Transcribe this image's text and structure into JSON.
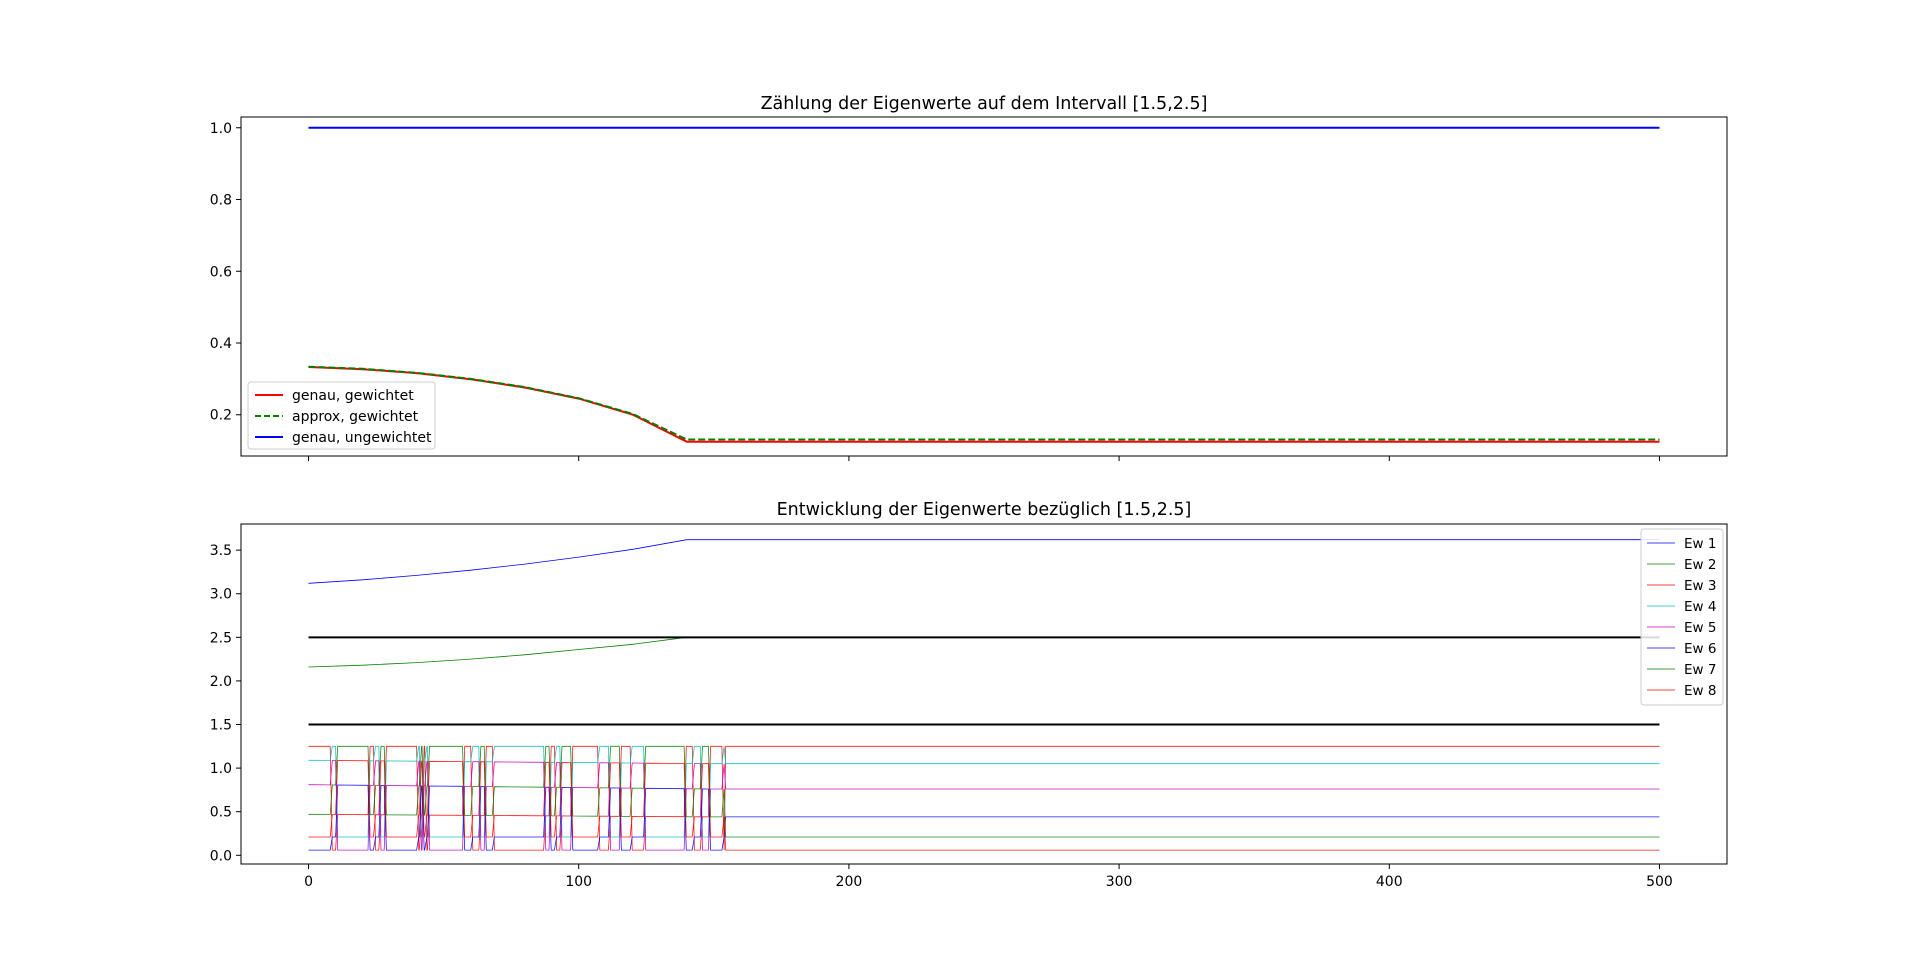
{
  "chart_data": [
    {
      "type": "line",
      "title": "Zählung der Eigenwerte auf dem Intervall [1.5,2.5]",
      "xlim": [
        -25,
        525
      ],
      "ylim": [
        0.085,
        1.03
      ],
      "xticks": [
        0,
        100,
        200,
        300,
        400,
        500
      ],
      "xtick_labels_visible": false,
      "yticks": [
        0.2,
        0.4,
        0.6,
        0.8,
        1.0
      ],
      "ytick_labels": [
        "0.2",
        "0.4",
        "0.6",
        "0.8",
        "1.0"
      ],
      "grid": false,
      "legend_position": "lower-left",
      "x": [
        0,
        20,
        40,
        60,
        80,
        100,
        120,
        140,
        200,
        300,
        400,
        500
      ],
      "series": [
        {
          "name": "genau, gewichtet",
          "color": "#ff0000",
          "style": "solid",
          "values": [
            0.333,
            0.327,
            0.316,
            0.299,
            0.276,
            0.245,
            0.2,
            0.125,
            0.125,
            0.125,
            0.125,
            0.125
          ]
        },
        {
          "name": "approx, gewichtet",
          "color": "#008000",
          "style": "dashed",
          "values": [
            0.334,
            0.328,
            0.317,
            0.3,
            0.277,
            0.246,
            0.202,
            0.131,
            0.131,
            0.131,
            0.131,
            0.131
          ]
        },
        {
          "name": "genau, ungewichtet",
          "color": "#0000ff",
          "style": "solid",
          "values": [
            1.0,
            1.0,
            1.0,
            1.0,
            1.0,
            1.0,
            1.0,
            1.0,
            1.0,
            1.0,
            1.0,
            1.0
          ]
        }
      ]
    },
    {
      "type": "line",
      "title": "Entwicklung der Eigenwerte bezüglich [1.5,2.5]",
      "xlim": [
        -25,
        525
      ],
      "ylim": [
        -0.1,
        3.8
      ],
      "xticks": [
        0,
        100,
        200,
        300,
        400,
        500
      ],
      "xtick_labels": [
        "0",
        "100",
        "200",
        "300",
        "400",
        "500"
      ],
      "yticks": [
        0.0,
        0.5,
        1.0,
        1.5,
        2.0,
        2.5,
        3.0,
        3.5
      ],
      "ytick_labels": [
        "0.0",
        "0.5",
        "1.0",
        "1.5",
        "2.0",
        "2.5",
        "3.0",
        "3.5"
      ],
      "grid": false,
      "legend_position": "upper-right",
      "interval_bounds": [
        1.5,
        2.5
      ],
      "interval_color": "#000000",
      "smooth_series": [
        {
          "name": "Ew 1",
          "color": "#0000ff",
          "x": [
            0,
            20,
            40,
            60,
            80,
            100,
            120,
            140,
            500
          ],
          "values": [
            3.12,
            3.16,
            3.21,
            3.27,
            3.34,
            3.42,
            3.51,
            3.62,
            3.62
          ]
        },
        {
          "name": "Ew 2",
          "color": "#008000",
          "x": [
            0,
            20,
            40,
            60,
            80,
            100,
            120,
            140,
            500
          ],
          "values": [
            2.16,
            2.18,
            2.21,
            2.25,
            2.3,
            2.36,
            2.42,
            2.5,
            2.5
          ]
        }
      ],
      "oscillating_series": [
        {
          "name": "Ew 3",
          "color": "#ff0000"
        },
        {
          "name": "Ew 4",
          "color": "#00bfbf"
        },
        {
          "name": "Ew 5",
          "color": "#bf00bf"
        },
        {
          "name": "Ew 6",
          "color": "#0000ff"
        },
        {
          "name": "Ew 7",
          "color": "#008000"
        },
        {
          "name": "Ew 8",
          "color": "#ff0000"
        }
      ],
      "oscillation_levels": {
        "start": [
          0.06,
          0.21,
          0.47,
          0.81,
          1.09,
          1.25
        ],
        "end": [
          0.06,
          0.21,
          0.44,
          0.76,
          1.05,
          1.25
        ]
      },
      "crossing_x": [
        8,
        10,
        22,
        24,
        26,
        28,
        40,
        41,
        42,
        43,
        44,
        57,
        60,
        63,
        65,
        68,
        87,
        89,
        91,
        93,
        97,
        107,
        111,
        115,
        119,
        124,
        139,
        142,
        145,
        148,
        153
      ]
    }
  ]
}
